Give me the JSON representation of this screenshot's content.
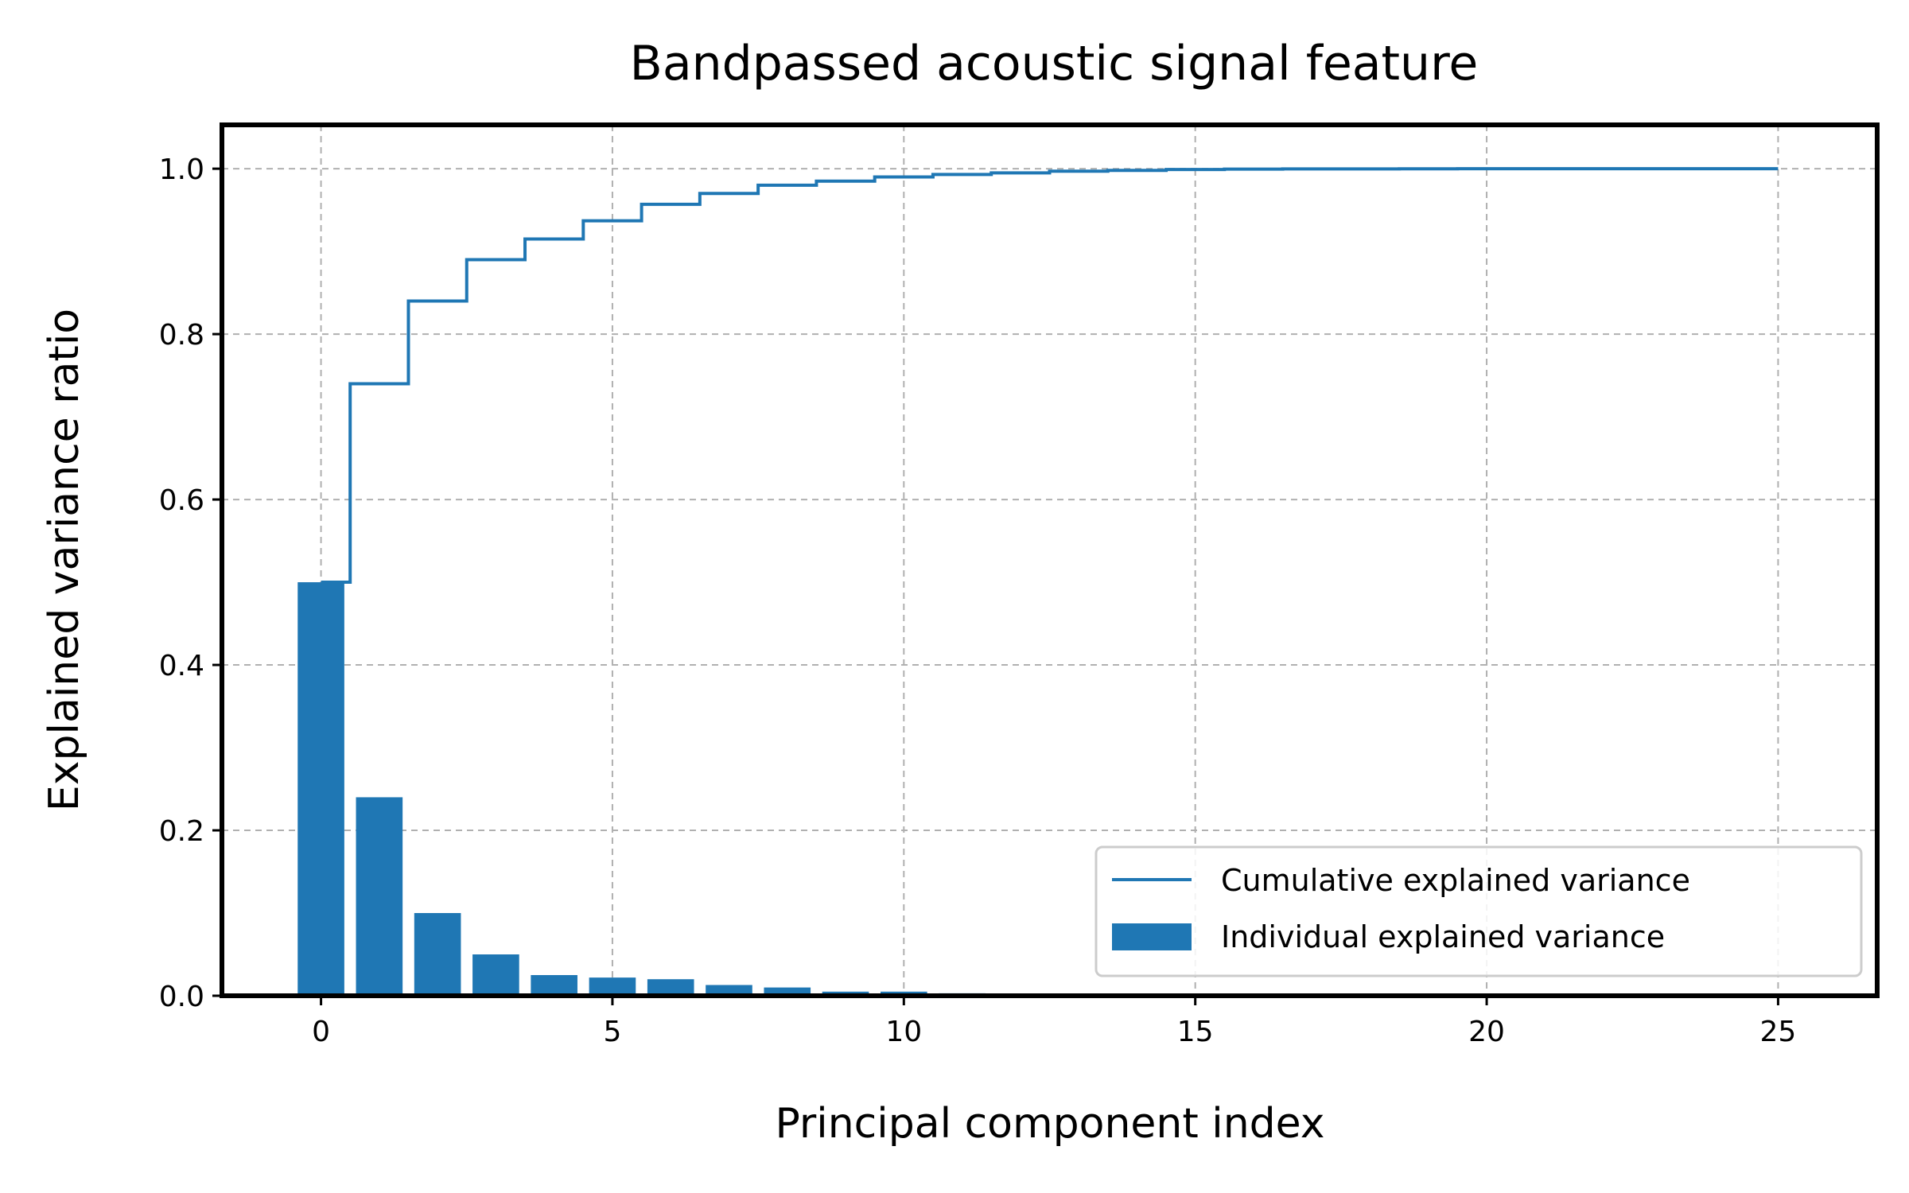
{
  "chart_data": {
    "type": "bar",
    "title": "Bandpassed acoustic signal feature",
    "xlabel": "Principal component index",
    "ylabel": "Explained variance ratio",
    "xlim": [
      -1.7,
      26.7
    ],
    "ylim": [
      0.0,
      1.053
    ],
    "xticks": [
      0,
      5,
      10,
      15,
      20,
      25
    ],
    "xtick_labels": [
      "0",
      "5",
      "10",
      "15",
      "20",
      "25"
    ],
    "yticks": [
      0.0,
      0.2,
      0.4,
      0.6,
      0.8,
      1.0
    ],
    "ytick_labels": [
      "0.0",
      "0.2",
      "0.4",
      "0.6",
      "0.8",
      "1.0"
    ],
    "grid": true,
    "legend_position": "lower-right",
    "color": "#1f77b4",
    "x": [
      0,
      1,
      2,
      3,
      4,
      5,
      6,
      7,
      8,
      9,
      10,
      11,
      12,
      13,
      14,
      15,
      16,
      17,
      18,
      19,
      20,
      21,
      22,
      23,
      24,
      25
    ],
    "series": [
      {
        "name": "Cumulative explained variance",
        "type": "step",
        "values": [
          0.5,
          0.74,
          0.84,
          0.89,
          0.915,
          0.937,
          0.957,
          0.97,
          0.98,
          0.985,
          0.99,
          0.993,
          0.995,
          0.997,
          0.998,
          0.999,
          0.9995,
          0.9997,
          0.9998,
          0.9999,
          0.99995,
          0.99997,
          0.99998,
          0.99999,
          1.0,
          1.0
        ]
      },
      {
        "name": "Individual explained variance",
        "type": "bar",
        "values": [
          0.5,
          0.24,
          0.1,
          0.05,
          0.025,
          0.022,
          0.02,
          0.013,
          0.01,
          0.005,
          0.005,
          0.003,
          0.002,
          0.002,
          0.001,
          0.001,
          0.0005,
          0.0002,
          0.0001,
          0.0001,
          5e-05,
          2e-05,
          1e-05,
          1e-05,
          1e-05,
          0.0
        ]
      }
    ]
  }
}
